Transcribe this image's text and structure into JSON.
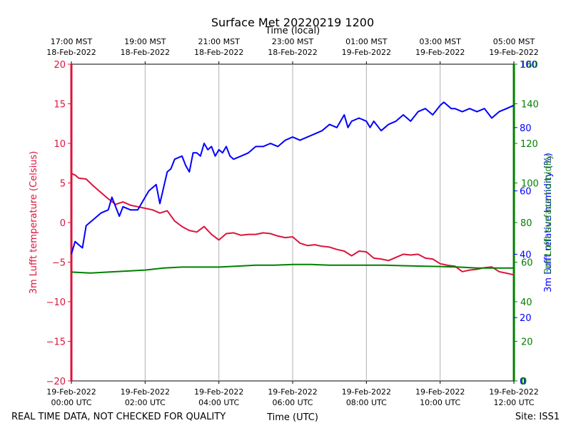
{
  "chart_data": {
    "type": "line",
    "title": "Surface Met 20220219 1200",
    "top_axis_label": "Time (local)",
    "xlabel": "Time (UTC)",
    "footer_left": "REAL TIME DATA, NOT CHECKED FOR QUALITY",
    "footer_right": "Site: ISS1",
    "x_ticks_utc": [
      {
        "line1": "19-Feb-2022",
        "line2": "00:00 UTC"
      },
      {
        "line1": "19-Feb-2022",
        "line2": "02:00 UTC"
      },
      {
        "line1": "19-Feb-2022",
        "line2": "04:00 UTC"
      },
      {
        "line1": "19-Feb-2022",
        "line2": "06:00 UTC"
      },
      {
        "line1": "19-Feb-2022",
        "line2": "08:00 UTC"
      },
      {
        "line1": "19-Feb-2022",
        "line2": "10:00 UTC"
      },
      {
        "line1": "19-Feb-2022",
        "line2": "12:00 UTC"
      }
    ],
    "x_ticks_local": [
      {
        "line1": "17:00 MST",
        "line2": "18-Feb-2022"
      },
      {
        "line1": "19:00 MST",
        "line2": "18-Feb-2022"
      },
      {
        "line1": "21:00 MST",
        "line2": "18-Feb-2022"
      },
      {
        "line1": "23:00 MST",
        "line2": "18-Feb-2022"
      },
      {
        "line1": "01:00 MST",
        "line2": "19-Feb-2022"
      },
      {
        "line1": "03:00 MST",
        "line2": "19-Feb-2022"
      },
      {
        "line1": "05:00 MST",
        "line2": "19-Feb-2022"
      }
    ],
    "xlim": [
      0,
      12
    ],
    "grid": "vertical",
    "left_axis": {
      "label": "3m Lufft temperature (Celsius)",
      "ylim": [
        -20,
        20
      ],
      "ticks": [
        "−20",
        "−15",
        "−10",
        "−5",
        "0",
        "5",
        "10",
        "15",
        "20"
      ],
      "color": "#dc143c"
    },
    "right_axis_blue": {
      "label": "3m Lufft relative humidity (%)",
      "ylim": [
        0,
        100
      ],
      "ticks": [
        "0",
        "20",
        "40",
        "60",
        "80",
        "100"
      ],
      "color": "#0000ff"
    },
    "right_axis_green": {
      "label": "3m Lufft surface humidity",
      "ylim": [
        0,
        160
      ],
      "ticks": [
        "0",
        "40",
        "80",
        "120",
        "160"
      ],
      "color": "#008000"
    },
    "right_axis_green_alt": {
      "ylim": [
        0,
        160
      ],
      "ticks": [
        "0",
        "20",
        "60",
        "100",
        "140"
      ],
      "color": "#008000"
    },
    "series": [
      {
        "axis": "left",
        "color": "#dc143c",
        "x": [
          0,
          0.1,
          0.2,
          0.4,
          0.6,
          0.8,
          1.0,
          1.2,
          1.4,
          1.6,
          1.8,
          2.0,
          2.2,
          2.4,
          2.6,
          2.8,
          3.0,
          3.2,
          3.4,
          3.6,
          3.8,
          4.0,
          4.2,
          4.4,
          4.6,
          4.8,
          5.0,
          5.2,
          5.4,
          5.6,
          5.8,
          6.0,
          6.2,
          6.4,
          6.6,
          6.8,
          7.0,
          7.2,
          7.4,
          7.6,
          7.8,
          8.0,
          8.2,
          8.4,
          8.6,
          8.8,
          9.0,
          9.2,
          9.4,
          9.6,
          9.8,
          10.0,
          10.2,
          10.4,
          10.6,
          10.8,
          11.0,
          11.2,
          11.4,
          11.6,
          11.8,
          12.0
        ],
        "y": [
          6.2,
          6.0,
          5.6,
          5.5,
          4.6,
          3.8,
          3.0,
          2.3,
          2.6,
          2.2,
          2.0,
          1.8,
          1.6,
          1.2,
          1.5,
          0.2,
          -0.5,
          -1.0,
          -1.2,
          -0.5,
          -1.5,
          -2.2,
          -1.4,
          -1.3,
          -1.6,
          -1.5,
          -1.5,
          -1.3,
          -1.4,
          -1.7,
          -1.9,
          -1.8,
          -2.6,
          -2.9,
          -2.8,
          -3.0,
          -3.1,
          -3.4,
          -3.6,
          -4.2,
          -3.6,
          -3.7,
          -4.5,
          -4.6,
          -4.8,
          -4.4,
          -4.0,
          -4.1,
          -4.0,
          -4.5,
          -4.6,
          -5.2,
          -5.4,
          -5.5,
          -6.2,
          -6.0,
          -5.9,
          -5.7,
          -5.6,
          -6.2,
          -6.4,
          -6.6
        ]
      },
      {
        "axis": "right_blue",
        "color": "#0000ff",
        "x": [
          0,
          0.1,
          0.2,
          0.3,
          0.4,
          0.5,
          0.6,
          0.8,
          1.0,
          1.1,
          1.3,
          1.4,
          1.6,
          1.8,
          2.0,
          2.1,
          2.3,
          2.4,
          2.6,
          2.7,
          2.8,
          3.0,
          3.1,
          3.2,
          3.3,
          3.4,
          3.5,
          3.6,
          3.7,
          3.8,
          3.9,
          4.0,
          4.1,
          4.2,
          4.3,
          4.4,
          4.6,
          4.8,
          5.0,
          5.2,
          5.4,
          5.6,
          5.8,
          6.0,
          6.2,
          6.4,
          6.6,
          6.8,
          7.0,
          7.2,
          7.4,
          7.5,
          7.6,
          7.8,
          8.0,
          8.1,
          8.2,
          8.4,
          8.5,
          8.6,
          8.8,
          9.0,
          9.2,
          9.4,
          9.6,
          9.8,
          10.0,
          10.1,
          10.2,
          10.3,
          10.4,
          10.6,
          10.8,
          11.0,
          11.2,
          11.4,
          11.6,
          11.8,
          12.0
        ],
        "y": [
          40,
          44,
          43,
          42,
          49,
          50,
          51,
          53,
          54,
          58,
          52,
          55,
          54,
          54,
          58,
          60,
          62,
          56,
          66,
          67,
          70,
          71,
          68,
          66,
          72,
          72,
          71,
          75,
          73,
          74,
          71,
          73,
          72,
          74,
          71,
          70,
          71,
          72,
          74,
          74,
          75,
          74,
          76,
          77,
          76,
          77,
          78,
          79,
          81,
          80,
          84,
          80,
          82,
          83,
          82,
          80,
          82,
          79,
          80,
          81,
          82,
          84,
          82,
          85,
          86,
          84,
          87,
          88,
          87,
          86,
          86,
          85,
          86,
          85,
          86,
          83,
          85,
          86,
          87
        ]
      },
      {
        "axis": "right_green",
        "color": "#008000",
        "x": [
          0,
          0.5,
          1.0,
          1.5,
          2.0,
          2.5,
          3.0,
          3.5,
          4.0,
          4.5,
          5.0,
          5.5,
          6.0,
          6.5,
          7.0,
          7.5,
          8.0,
          8.5,
          9.0,
          9.5,
          10.0,
          10.5,
          11.0,
          11.5,
          12.0
        ],
        "y": [
          55,
          54.5,
          55,
          55.5,
          56,
          57,
          57.5,
          57.5,
          57.5,
          58,
          58.5,
          58.5,
          58.8,
          58.8,
          58.5,
          58.5,
          58.5,
          58.5,
          58.2,
          58,
          57.8,
          57.5,
          57,
          57,
          57
        ]
      }
    ]
  }
}
